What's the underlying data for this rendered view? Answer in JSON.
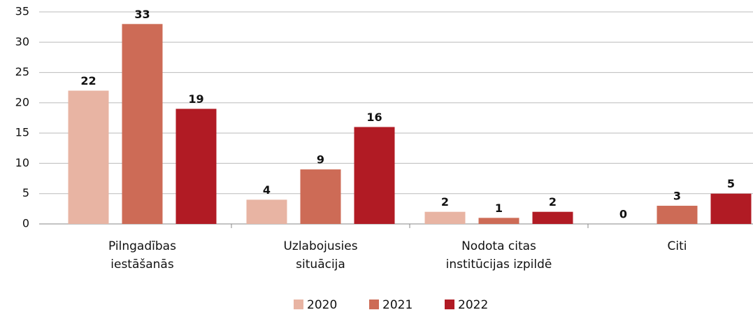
{
  "chart_data": {
    "type": "bar",
    "categories": [
      [
        "Pilngadības",
        "iestāšanās"
      ],
      [
        "Uzlabojusies",
        "situācija"
      ],
      [
        "Nodota citas",
        "institūcijas izpildē"
      ],
      [
        "Citi"
      ]
    ],
    "series": [
      {
        "name": "2020",
        "color": "#e8b4a3",
        "values": [
          22,
          4,
          2,
          0
        ]
      },
      {
        "name": "2021",
        "color": "#cd6b56",
        "values": [
          33,
          9,
          1,
          3
        ]
      },
      {
        "name": "2022",
        "color": "#b11b24",
        "values": [
          19,
          16,
          2,
          5
        ]
      }
    ],
    "ylim": [
      0,
      35
    ],
    "yticks": [
      0,
      5,
      10,
      15,
      20,
      25,
      30,
      35
    ],
    "grid": true,
    "legend": "bottom"
  }
}
